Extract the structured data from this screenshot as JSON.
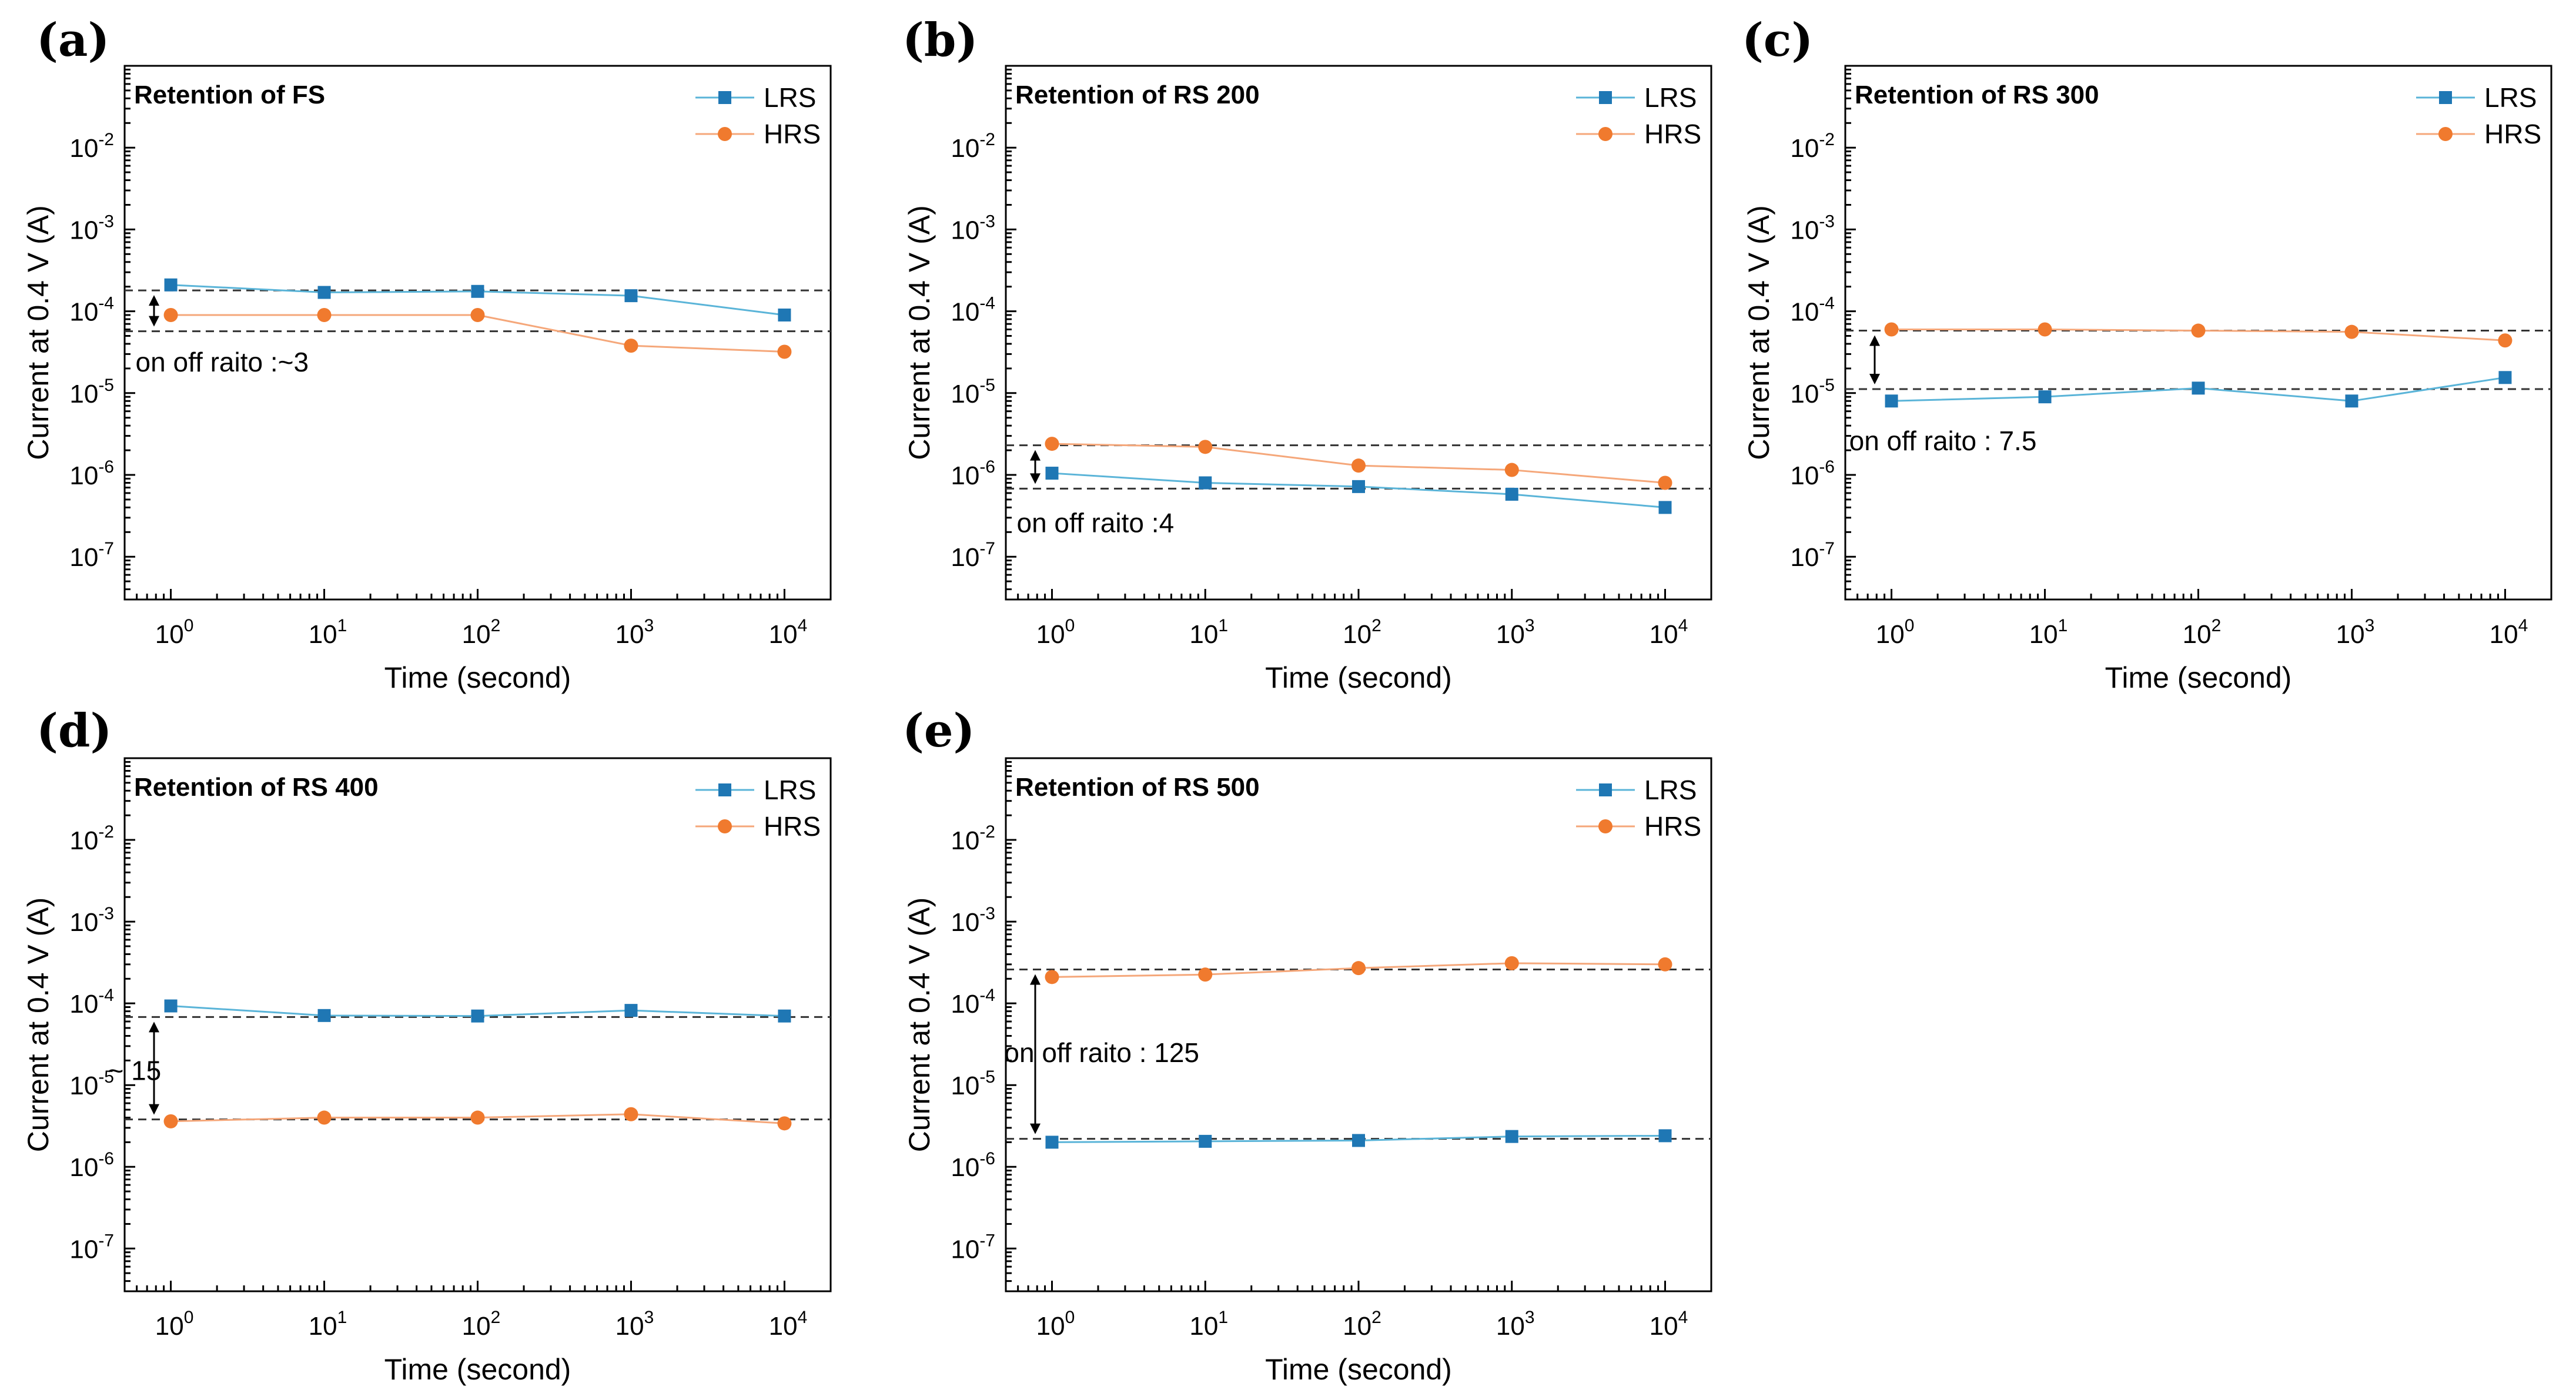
{
  "chart_data": [
    {
      "type": "line",
      "panel_label": "(a)",
      "title": "Retention of FS",
      "xlabel": "Time (second)",
      "ylabel": "Current at 0.4 V (A)",
      "xscale": "log",
      "yscale": "log",
      "xlim": [
        0.5,
        20000
      ],
      "ylim": [
        3e-08,
        0.1
      ],
      "xticks": [
        {
          "base": "10",
          "exp": "0"
        },
        {
          "base": "10",
          "exp": "1"
        },
        {
          "base": "10",
          "exp": "2"
        },
        {
          "base": "10",
          "exp": "3"
        },
        {
          "base": "10",
          "exp": "4"
        }
      ],
      "yticks": [
        {
          "base": "10",
          "exp": "-7"
        },
        {
          "base": "10",
          "exp": "-6"
        },
        {
          "base": "10",
          "exp": "-5"
        },
        {
          "base": "10",
          "exp": "-4"
        },
        {
          "base": "10",
          "exp": "-3"
        },
        {
          "base": "10",
          "exp": "-2"
        }
      ],
      "x": [
        1,
        10,
        100,
        1000,
        10000
      ],
      "series": [
        {
          "name": "LRS",
          "color": "#5ab4d8",
          "marker_color": "#1f77b4",
          "marker": "square",
          "values": [
            0.00021,
            0.00017,
            0.000175,
            0.000155,
            9e-05
          ]
        },
        {
          "name": "HRS",
          "color": "#f5a77a",
          "marker_color": "#f07a2e",
          "marker": "circle",
          "values": [
            9e-05,
            9e-05,
            9e-05,
            3.8e-05,
            3.2e-05
          ]
        }
      ],
      "reference_lines": [
        0.00018,
        5.7e-05
      ],
      "annotation": {
        "text": "on off raito :~3",
        "x": 1,
        "y": 2.4e-05
      }
    },
    {
      "type": "line",
      "panel_label": "(b)",
      "title": "Retention of RS 200",
      "xlabel": "Time (second)",
      "ylabel": "Current at 0.4 V (A)",
      "xscale": "log",
      "yscale": "log",
      "xlim": [
        0.5,
        20000
      ],
      "ylim": [
        3e-08,
        0.1
      ],
      "xticks": [
        {
          "base": "10",
          "exp": "0"
        },
        {
          "base": "10",
          "exp": "1"
        },
        {
          "base": "10",
          "exp": "2"
        },
        {
          "base": "10",
          "exp": "3"
        },
        {
          "base": "10",
          "exp": "4"
        }
      ],
      "yticks": [
        {
          "base": "10",
          "exp": "-7"
        },
        {
          "base": "10",
          "exp": "-6"
        },
        {
          "base": "10",
          "exp": "-5"
        },
        {
          "base": "10",
          "exp": "-4"
        },
        {
          "base": "10",
          "exp": "-3"
        },
        {
          "base": "10",
          "exp": "-2"
        }
      ],
      "x": [
        1,
        10,
        100,
        1000,
        10000
      ],
      "series": [
        {
          "name": "LRS",
          "color": "#5ab4d8",
          "marker_color": "#1f77b4",
          "marker": "square",
          "values": [
            1.05e-06,
            8e-07,
            7.2e-07,
            5.8e-07,
            4e-07
          ]
        },
        {
          "name": "HRS",
          "color": "#f5a77a",
          "marker_color": "#f07a2e",
          "marker": "circle",
          "values": [
            2.4e-06,
            2.2e-06,
            1.3e-06,
            1.15e-06,
            8e-07
          ]
        }
      ],
      "reference_lines": [
        2.3e-06,
        6.8e-07
      ],
      "annotation": {
        "text": "on off raito :4",
        "x": 1,
        "y": 2.6e-07
      }
    },
    {
      "type": "line",
      "panel_label": "(c)",
      "title": "Retention of RS 300",
      "xlabel": "Time (second)",
      "ylabel": "Current at 0.4 V (A)",
      "xscale": "log",
      "yscale": "log",
      "xlim": [
        0.5,
        20000
      ],
      "ylim": [
        3e-08,
        0.1
      ],
      "xticks": [
        {
          "base": "10",
          "exp": "0"
        },
        {
          "base": "10",
          "exp": "1"
        },
        {
          "base": "10",
          "exp": "2"
        },
        {
          "base": "10",
          "exp": "3"
        },
        {
          "base": "10",
          "exp": "4"
        }
      ],
      "yticks": [
        {
          "base": "10",
          "exp": "-7"
        },
        {
          "base": "10",
          "exp": "-6"
        },
        {
          "base": "10",
          "exp": "-5"
        },
        {
          "base": "10",
          "exp": "-4"
        },
        {
          "base": "10",
          "exp": "-3"
        },
        {
          "base": "10",
          "exp": "-2"
        }
      ],
      "x": [
        1,
        10,
        100,
        1000,
        10000
      ],
      "series": [
        {
          "name": "LRS",
          "color": "#5ab4d8",
          "marker_color": "#1f77b4",
          "marker": "square",
          "values": [
            8e-06,
            9e-06,
            1.15e-05,
            8e-06,
            1.55e-05
          ]
        },
        {
          "name": "HRS",
          "color": "#f5a77a",
          "marker_color": "#f07a2e",
          "marker": "circle",
          "values": [
            6e-05,
            6e-05,
            5.8e-05,
            5.6e-05,
            4.4e-05
          ]
        }
      ],
      "reference_lines": [
        5.8e-05,
        1.12e-05
      ],
      "annotation": {
        "text": "on off raito : 7.5",
        "x": 0.9,
        "y": 2.6e-06
      }
    },
    {
      "type": "line",
      "panel_label": "(d)",
      "title": "Retention of RS 400",
      "xlabel": "Time (second)",
      "ylabel": "Current at 0.4 V (A)",
      "xscale": "log",
      "yscale": "log",
      "xlim": [
        0.5,
        20000
      ],
      "ylim": [
        3e-08,
        0.1
      ],
      "xticks": [
        {
          "base": "10",
          "exp": "0"
        },
        {
          "base": "10",
          "exp": "1"
        },
        {
          "base": "10",
          "exp": "2"
        },
        {
          "base": "10",
          "exp": "3"
        },
        {
          "base": "10",
          "exp": "4"
        }
      ],
      "yticks": [
        {
          "base": "10",
          "exp": "-7"
        },
        {
          "base": "10",
          "exp": "-6"
        },
        {
          "base": "10",
          "exp": "-5"
        },
        {
          "base": "10",
          "exp": "-4"
        },
        {
          "base": "10",
          "exp": "-3"
        },
        {
          "base": "10",
          "exp": "-2"
        }
      ],
      "x": [
        1,
        10,
        100,
        1000,
        10000
      ],
      "series": [
        {
          "name": "LRS",
          "color": "#5ab4d8",
          "marker_color": "#1f77b4",
          "marker": "square",
          "values": [
            9.3e-05,
            7.1e-05,
            7e-05,
            8.2e-05,
            7e-05
          ]
        },
        {
          "name": "HRS",
          "color": "#f5a77a",
          "marker_color": "#f07a2e",
          "marker": "circle",
          "values": [
            3.6e-06,
            4e-06,
            4e-06,
            4.4e-06,
            3.4e-06
          ]
        }
      ],
      "reference_lines": [
        6.8e-05,
        3.8e-06
      ],
      "annotation": {
        "text": "~ 15",
        "x": 0.66,
        "y": 1.5e-05
      }
    },
    {
      "type": "line",
      "panel_label": "(e)",
      "title": "Retention of RS 500",
      "xlabel": "Time (second)",
      "ylabel": "Current at 0.4 V (A)",
      "xscale": "log",
      "yscale": "log",
      "xlim": [
        0.5,
        20000
      ],
      "ylim": [
        3e-08,
        0.1
      ],
      "xticks": [
        {
          "base": "10",
          "exp": "0"
        },
        {
          "base": "10",
          "exp": "1"
        },
        {
          "base": "10",
          "exp": "2"
        },
        {
          "base": "10",
          "exp": "3"
        },
        {
          "base": "10",
          "exp": "4"
        }
      ],
      "yticks": [
        {
          "base": "10",
          "exp": "-7"
        },
        {
          "base": "10",
          "exp": "-6"
        },
        {
          "base": "10",
          "exp": "-5"
        },
        {
          "base": "10",
          "exp": "-4"
        },
        {
          "base": "10",
          "exp": "-3"
        },
        {
          "base": "10",
          "exp": "-2"
        }
      ],
      "x": [
        1,
        10,
        100,
        1000,
        10000
      ],
      "series": [
        {
          "name": "LRS",
          "color": "#5ab4d8",
          "marker_color": "#1f77b4",
          "marker": "square",
          "values": [
            2e-06,
            2.05e-06,
            2.1e-06,
            2.35e-06,
            2.4e-06
          ]
        },
        {
          "name": "HRS",
          "color": "#f5a77a",
          "marker_color": "#f07a2e",
          "marker": "circle",
          "values": [
            0.00021,
            0.000225,
            0.00027,
            0.00031,
            0.0003
          ]
        }
      ],
      "reference_lines": [
        0.00026,
        2.2e-06
      ],
      "annotation": {
        "text": "on off raito : 125",
        "x": 0.83,
        "y": 2.5e-05
      }
    }
  ]
}
